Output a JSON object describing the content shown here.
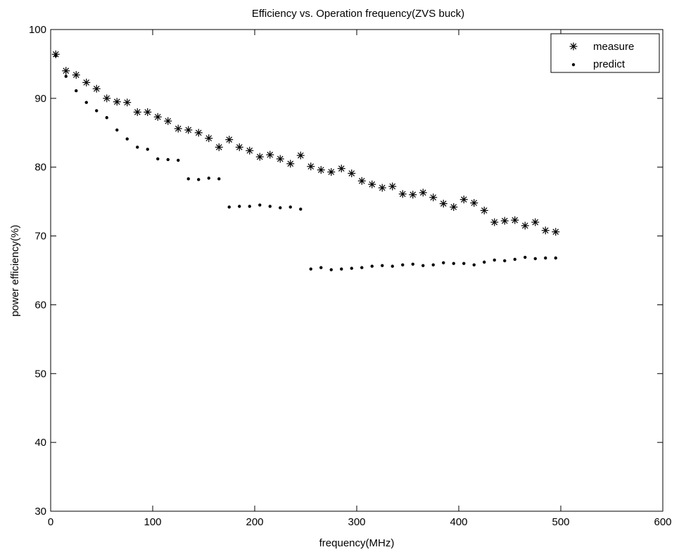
{
  "chart_data": {
    "type": "scatter",
    "title": "Efficiency vs. Operation frequency(ZVS buck)",
    "xlabel": "frequency(MHz)",
    "ylabel": "power efficiency(%)",
    "xlim": [
      0,
      600
    ],
    "ylim": [
      30,
      100
    ],
    "xticks": [
      "0",
      "100",
      "200",
      "300",
      "400",
      "500",
      "600"
    ],
    "yticks": [
      "30",
      "40",
      "50",
      "60",
      "70",
      "80",
      "90",
      "100"
    ],
    "legend_position": "top-right",
    "grid": false,
    "series": [
      {
        "name": "measure",
        "marker": "asterisk",
        "points": [
          [
            5,
            96.4
          ],
          [
            15,
            94.0
          ],
          [
            25,
            93.4
          ],
          [
            35,
            92.3
          ],
          [
            45,
            91.4
          ],
          [
            55,
            90.0
          ],
          [
            65,
            89.5
          ],
          [
            75,
            89.4
          ],
          [
            85,
            88.0
          ],
          [
            95,
            88.0
          ],
          [
            105,
            87.3
          ],
          [
            115,
            86.7
          ],
          [
            125,
            85.6
          ],
          [
            135,
            85.4
          ],
          [
            145,
            85.0
          ],
          [
            155,
            84.2
          ],
          [
            165,
            82.9
          ],
          [
            175,
            84.0
          ],
          [
            185,
            82.9
          ],
          [
            195,
            82.4
          ],
          [
            205,
            81.5
          ],
          [
            215,
            81.8
          ],
          [
            225,
            81.2
          ],
          [
            235,
            80.5
          ],
          [
            245,
            81.7
          ],
          [
            255,
            80.1
          ],
          [
            265,
            79.6
          ],
          [
            275,
            79.3
          ],
          [
            285,
            79.8
          ],
          [
            295,
            79.1
          ],
          [
            305,
            78.0
          ],
          [
            315,
            77.5
          ],
          [
            325,
            77.0
          ],
          [
            335,
            77.2
          ],
          [
            345,
            76.1
          ],
          [
            355,
            76.0
          ],
          [
            365,
            76.3
          ],
          [
            375,
            75.6
          ],
          [
            385,
            74.7
          ],
          [
            395,
            74.2
          ],
          [
            405,
            75.3
          ],
          [
            415,
            74.8
          ],
          [
            425,
            73.7
          ],
          [
            435,
            72.0
          ],
          [
            445,
            72.2
          ],
          [
            455,
            72.3
          ],
          [
            465,
            71.5
          ],
          [
            475,
            72.0
          ],
          [
            485,
            70.8
          ],
          [
            495,
            70.6
          ]
        ]
      },
      {
        "name": "predict",
        "marker": "dot",
        "points": [
          [
            5,
            96.2
          ],
          [
            15,
            93.2
          ],
          [
            25,
            91.1
          ],
          [
            35,
            89.4
          ],
          [
            45,
            88.2
          ],
          [
            55,
            87.2
          ],
          [
            65,
            85.4
          ],
          [
            75,
            84.1
          ],
          [
            85,
            82.9
          ],
          [
            95,
            82.6
          ],
          [
            105,
            81.2
          ],
          [
            115,
            81.1
          ],
          [
            125,
            81.0
          ],
          [
            135,
            78.3
          ],
          [
            145,
            78.2
          ],
          [
            155,
            78.4
          ],
          [
            165,
            78.3
          ],
          [
            175,
            74.2
          ],
          [
            185,
            74.3
          ],
          [
            195,
            74.3
          ],
          [
            205,
            74.5
          ],
          [
            215,
            74.3
          ],
          [
            225,
            74.1
          ],
          [
            235,
            74.2
          ],
          [
            245,
            73.9
          ],
          [
            255,
            65.2
          ],
          [
            265,
            65.4
          ],
          [
            275,
            65.1
          ],
          [
            285,
            65.2
          ],
          [
            295,
            65.3
          ],
          [
            305,
            65.4
          ],
          [
            315,
            65.6
          ],
          [
            325,
            65.7
          ],
          [
            335,
            65.6
          ],
          [
            345,
            65.8
          ],
          [
            355,
            65.9
          ],
          [
            365,
            65.7
          ],
          [
            375,
            65.8
          ],
          [
            385,
            66.1
          ],
          [
            395,
            66.0
          ],
          [
            405,
            66.0
          ],
          [
            415,
            65.8
          ],
          [
            425,
            66.2
          ],
          [
            435,
            66.5
          ],
          [
            445,
            66.4
          ],
          [
            455,
            66.6
          ],
          [
            465,
            66.9
          ],
          [
            475,
            66.7
          ],
          [
            485,
            66.8
          ],
          [
            495,
            66.8
          ]
        ]
      }
    ]
  }
}
